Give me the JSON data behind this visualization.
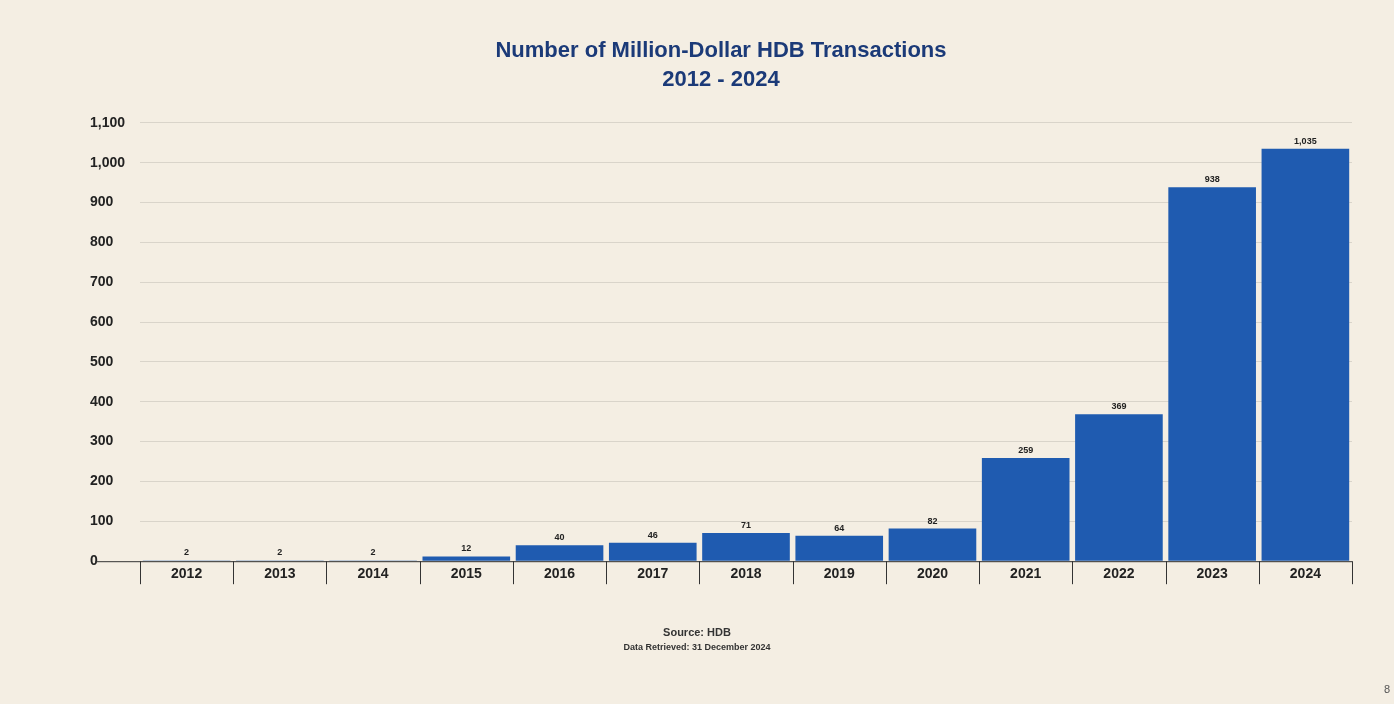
{
  "chart_data": {
    "type": "bar",
    "title": "Number of Million-Dollar HDB Transactions",
    "subtitle": "2012 - 2024",
    "categories": [
      "2012",
      "2013",
      "2014",
      "2015",
      "2016",
      "2017",
      "2018",
      "2019",
      "2020",
      "2021",
      "2022",
      "2023",
      "2024"
    ],
    "values": [
      2,
      2,
      2,
      12,
      40,
      46,
      71,
      64,
      82,
      259,
      369,
      938,
      1035
    ],
    "value_labels": [
      "2",
      "2",
      "2",
      "12",
      "40",
      "46",
      "71",
      "64",
      "82",
      "259",
      "369",
      "938",
      "1,035"
    ],
    "color": "#1f5bb0",
    "grid": "y",
    "legend": false,
    "ylim": [
      0,
      1100
    ],
    "yticks": [
      0,
      100,
      200,
      300,
      400,
      500,
      600,
      700,
      800,
      900,
      {
        "value": 1000,
        "label": "1,000"
      },
      {
        "value": 1100,
        "label": "1,100"
      }
    ],
    "annotations": [
      "Source: HDB",
      "Data Retrieved: 31 December 2024",
      "8"
    ]
  }
}
